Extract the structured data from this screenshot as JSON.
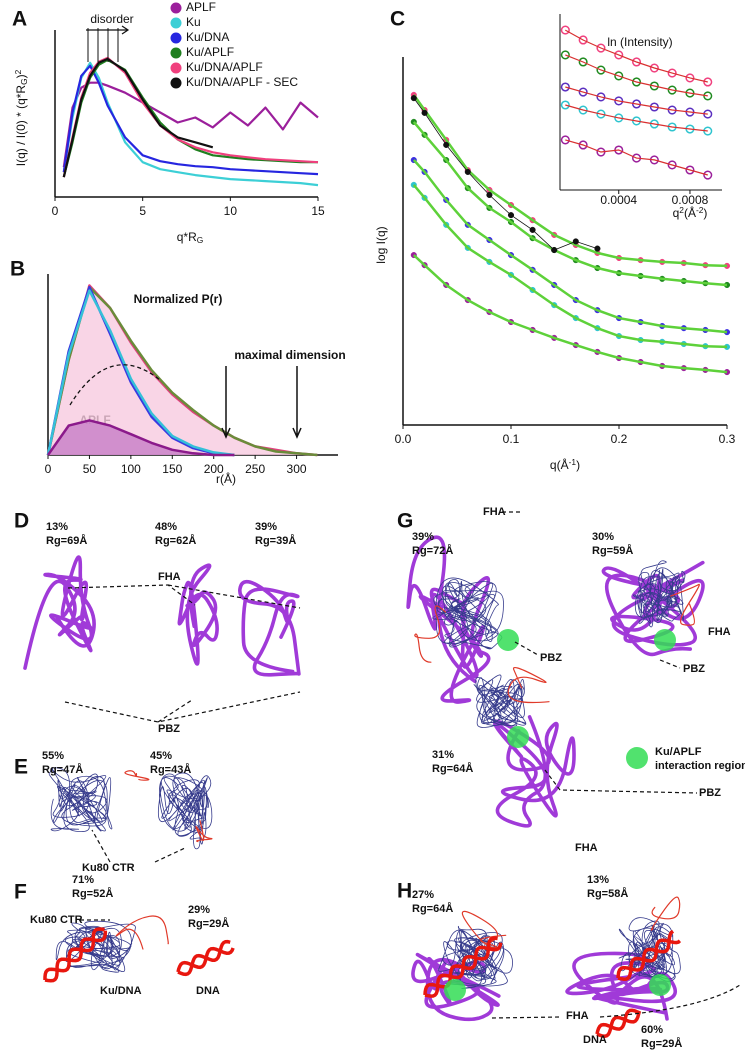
{
  "chart_data": [
    {
      "type": "line",
      "panel": "A",
      "xlabel": [
        {
          "text": "q*R"
        },
        {
          "sub": "G"
        }
      ],
      "ylabel": [
        {
          "text": "I(q) / I(0) * (q*R"
        },
        {
          "sub": "G"
        },
        {
          "text": ")"
        },
        {
          "sup": "2"
        }
      ],
      "annotations": [
        "disorder"
      ],
      "x": [
        0.5,
        1,
        1.5,
        2,
        2.5,
        3,
        4,
        5,
        6,
        7,
        8,
        9,
        10,
        11,
        12,
        13,
        14,
        15
      ],
      "xlim": [
        0,
        15
      ],
      "ylim": [
        0,
        1.6
      ],
      "xticks": [
        0,
        5,
        10,
        15
      ],
      "legend": "top-right",
      "series": [
        {
          "name": "APLF",
          "color": "#9b1f9b",
          "values": [
            0.3,
            0.9,
            1.1,
            1.15,
            1.15,
            1.12,
            1.05,
            0.95,
            0.85,
            0.75,
            0.8,
            0.7,
            0.85,
            0.72,
            0.9,
            0.68,
            0.95,
            0.8
          ]
        },
        {
          "name": "Ku",
          "color": "#3ccfd6",
          "values": [
            0.25,
            0.8,
            1.2,
            1.35,
            1.2,
            0.95,
            0.55,
            0.35,
            0.28,
            0.25,
            0.22,
            0.2,
            0.18,
            0.17,
            0.16,
            0.15,
            0.14,
            0.12
          ]
        },
        {
          "name": "Ku/DNA",
          "color": "#2626e0",
          "values": [
            0.25,
            0.85,
            1.22,
            1.32,
            1.15,
            0.92,
            0.6,
            0.42,
            0.36,
            0.33,
            0.31,
            0.3,
            0.28,
            0.27,
            0.26,
            0.25,
            0.24,
            0.23
          ]
        },
        {
          "name": "Ku/APLF",
          "color": "#1f7f1f",
          "values": [
            0.2,
            0.55,
            0.95,
            1.2,
            1.33,
            1.38,
            1.28,
            1.0,
            0.75,
            0.58,
            0.48,
            0.42,
            0.4,
            0.38,
            0.37,
            0.36,
            0.35,
            0.35
          ]
        },
        {
          "name": "Ku/DNA/APLF",
          "color": "#f0407e",
          "values": [
            0.2,
            0.6,
            1.0,
            1.25,
            1.36,
            1.4,
            1.25,
            0.95,
            0.72,
            0.58,
            0.5,
            0.45,
            0.42,
            0.4,
            0.38,
            0.37,
            0.36,
            0.35
          ]
        },
        {
          "name": "Ku/DNA/APLF - SEC",
          "color": "#111111",
          "values": [
            0.2,
            0.58,
            0.98,
            1.22,
            1.35,
            1.39,
            1.27,
            0.98,
            0.72,
            0.6,
            0.55,
            0.5,
            null,
            null,
            null,
            null,
            null,
            null
          ]
        }
      ]
    },
    {
      "type": "area",
      "panel": "B",
      "title": "Normalized  P(r)",
      "xlabel": "r(Å)",
      "annotations": [
        "maximal dimension",
        "APLF"
      ],
      "x": [
        0,
        25,
        50,
        75,
        100,
        125,
        150,
        175,
        200,
        225,
        250,
        275,
        300,
        325
      ],
      "xlim": [
        0,
        350
      ],
      "ylim": [
        0,
        1
      ],
      "xticks": [
        0,
        50,
        100,
        150,
        200,
        250,
        300
      ],
      "series": [
        {
          "color": "#e0407e",
          "fill": "#f7cbe0",
          "values": [
            0,
            0.55,
            0.98,
            0.85,
            0.65,
            0.48,
            0.35,
            0.25,
            0.17,
            0.1,
            0.05,
            0.03,
            0.01,
            0
          ]
        },
        {
          "color": "#6a8c3a",
          "values": [
            0,
            0.55,
            0.97,
            0.85,
            0.66,
            0.49,
            0.36,
            0.26,
            0.17,
            0.1,
            0.05,
            0.02,
            0.01,
            0
          ]
        },
        {
          "color": "#3a3ae0",
          "values": [
            0,
            0.6,
            0.97,
            0.7,
            0.42,
            0.22,
            0.1,
            0.04,
            0.01,
            0,
            null,
            null,
            null,
            null
          ]
        },
        {
          "color": "#35c0d8",
          "values": [
            0,
            0.58,
            0.95,
            0.72,
            0.44,
            0.24,
            0.11,
            0.05,
            0.015,
            0,
            null,
            null,
            null,
            null
          ]
        },
        {
          "color": "#8b1a8b",
          "fill": "#c77dc7",
          "values": [
            0,
            0.17,
            0.2,
            0.17,
            0.12,
            0.07,
            0.03,
            0.01,
            0,
            0,
            null,
            null,
            null,
            null
          ]
        }
      ]
    },
    {
      "type": "scatter",
      "panel": "C",
      "ylabel": "log I(q)",
      "xlabel": [
        {
          "text": "q(Å"
        },
        {
          "sup": "-1"
        },
        {
          "text": ")"
        }
      ],
      "x": [
        0.01,
        0.02,
        0.04,
        0.06,
        0.08,
        0.1,
        0.12,
        0.14,
        0.16,
        0.18,
        0.2,
        0.22,
        0.24,
        0.26,
        0.28,
        0.3
      ],
      "xlim": [
        0,
        0.3
      ],
      "ylim": [
        0,
        10
      ],
      "xticks": [
        {
          "value": 0,
          "label": "0.0"
        },
        0.1,
        0.2,
        0.3
      ],
      "marker": "filled",
      "fit_color": "#5ed13a",
      "series": [
        {
          "color": "#f0407e",
          "values": [
            9.17,
            8.75,
            7.92,
            7.08,
            6.53,
            6.11,
            5.69,
            5.28,
            5.0,
            4.78,
            4.64,
            4.58,
            4.53,
            4.5,
            4.44,
            4.42
          ]
        },
        {
          "color": "#1f8a1f",
          "values": [
            8.42,
            8.06,
            7.36,
            6.58,
            6.03,
            5.64,
            5.19,
            4.86,
            4.58,
            4.36,
            4.22,
            4.14,
            4.06,
            4.0,
            3.94,
            3.89
          ]
        },
        {
          "color": "#3b2fe0",
          "values": [
            7.36,
            7.03,
            6.25,
            5.56,
            5.14,
            4.72,
            4.31,
            3.89,
            3.47,
            3.19,
            2.97,
            2.86,
            2.75,
            2.69,
            2.64,
            2.58
          ]
        },
        {
          "color": "#2ec4cf",
          "values": [
            6.67,
            6.31,
            5.56,
            4.92,
            4.53,
            4.17,
            3.75,
            3.33,
            2.97,
            2.69,
            2.47,
            2.36,
            2.31,
            2.25,
            2.19,
            2.17
          ]
        },
        {
          "color": "#9b1f9b",
          "values": [
            4.72,
            4.44,
            3.89,
            3.47,
            3.14,
            2.86,
            2.64,
            2.42,
            2.22,
            2.03,
            1.86,
            1.75,
            1.64,
            1.58,
            1.53,
            1.47
          ]
        },
        {
          "color": "#111111",
          "values": [
            9.08,
            8.67,
            7.78,
            7.03,
            6.39,
            5.83,
            5.42,
            4.86,
            5.1,
            4.9,
            null,
            null,
            null,
            null,
            null,
            null
          ]
        }
      ]
    },
    {
      "type": "scatter",
      "inset": true,
      "ylabel": "ln (Intensity)",
      "xlabel": [
        {
          "text": "q"
        },
        {
          "sup": "2"
        },
        {
          "text": "(Å"
        },
        {
          "sup": "-2"
        },
        {
          "text": ")"
        }
      ],
      "x": [
        0.0001,
        0.0002,
        0.0003,
        0.0004,
        0.0005,
        0.0006,
        0.0007,
        0.0008,
        0.0009
      ],
      "xlim": [
        7e-05,
        0.00098
      ],
      "ylim": [
        0,
        10
      ],
      "xticks": [
        0.0004,
        0.0008
      ],
      "marker": "open",
      "fit_color": "#d93030",
      "series": [
        {
          "color": "#f0407e",
          "values": [
            9.52,
            8.93,
            8.45,
            8.04,
            7.62,
            7.26,
            6.96,
            6.67,
            6.43
          ]
        },
        {
          "color": "#1f8a1f",
          "values": [
            8.04,
            7.62,
            7.14,
            6.79,
            6.43,
            6.19,
            5.95,
            5.77,
            5.6
          ]
        },
        {
          "color": "#5a2fc0",
          "values": [
            6.13,
            5.83,
            5.54,
            5.3,
            5.12,
            4.94,
            4.76,
            4.64,
            4.52
          ]
        },
        {
          "color": "#2ec4cf",
          "values": [
            5.06,
            4.76,
            4.52,
            4.29,
            4.11,
            3.93,
            3.75,
            3.63,
            3.51
          ]
        },
        {
          "color": "#9b1f9b",
          "values": [
            2.98,
            2.68,
            2.26,
            2.38,
            1.9,
            1.79,
            1.49,
            1.19,
            0.89
          ]
        }
      ]
    }
  ],
  "panels": {
    "D": {
      "label": "D",
      "texts": [
        "13%",
        "Rg=69Å",
        "48%",
        "Rg=62Å",
        "39%",
        "Rg=39Å",
        "FHA",
        "PBZ"
      ]
    },
    "E": {
      "label": "E",
      "texts": [
        "55%",
        "Rg=47Å",
        "45%",
        "Rg=43Å",
        "Ku80 CTR"
      ]
    },
    "F": {
      "label": "F",
      "texts": [
        "71%",
        "Rg=52Å",
        "Ku80 CTR",
        "29%",
        "Rg=29Å",
        "Ku/DNA",
        "DNA"
      ]
    },
    "G": {
      "label": "G",
      "texts": [
        "FHA",
        "39%",
        "Rg=72Å",
        "30%",
        "Rg=59Å",
        "FHA",
        "PBZ",
        "PBZ",
        "31%",
        "Rg=64Å",
        "Ku/APLF",
        "interaction region",
        "PBZ",
        "FHA"
      ]
    },
    "H": {
      "label": "H",
      "texts": [
        "27%",
        "Rg=64Å",
        "13%",
        "Rg=58Å",
        "FHA",
        "DNA",
        "60%",
        "Rg=29Å"
      ]
    }
  }
}
